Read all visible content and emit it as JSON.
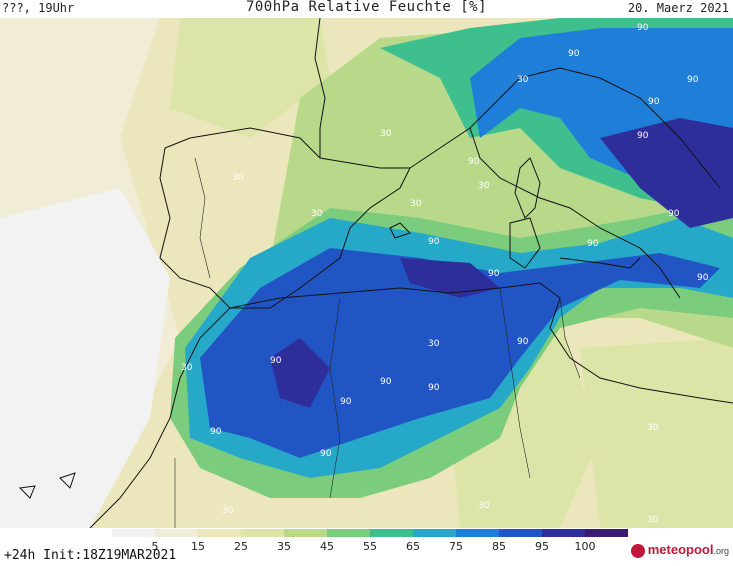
{
  "header": {
    "left": "???, 19Uhr",
    "title": "700hPa Relative Feuchte [%]",
    "date": "20. Maerz 2021"
  },
  "footer": {
    "init": "+24h Init:18Z19MAR2021",
    "logo_main": "meteopool",
    "logo_suffix": ".org"
  },
  "colorbar": {
    "labels": [
      "5",
      "15",
      "25",
      "35",
      "45",
      "55",
      "65",
      "75",
      "85",
      "95",
      "100"
    ],
    "colors": [
      "#f2f2f2",
      "#f0ecd6",
      "#ebe6bc",
      "#dde4a8",
      "#b8d98a",
      "#7ccc7e",
      "#3fbf8e",
      "#26a8c9",
      "#1f7fd8",
      "#2255c4",
      "#2d2e9a",
      "#3b1a72"
    ]
  },
  "contour_labels": {
    "values": [
      "90",
      "90",
      "90",
      "90",
      "90",
      "90",
      "90",
      "90",
      "90",
      "90",
      "90",
      "90",
      "90",
      "90",
      "90",
      "90",
      "90",
      "90",
      "30",
      "30",
      "30",
      "30",
      "30",
      "30",
      "30",
      "30",
      "30",
      "30",
      "30",
      "30"
    ]
  }
}
